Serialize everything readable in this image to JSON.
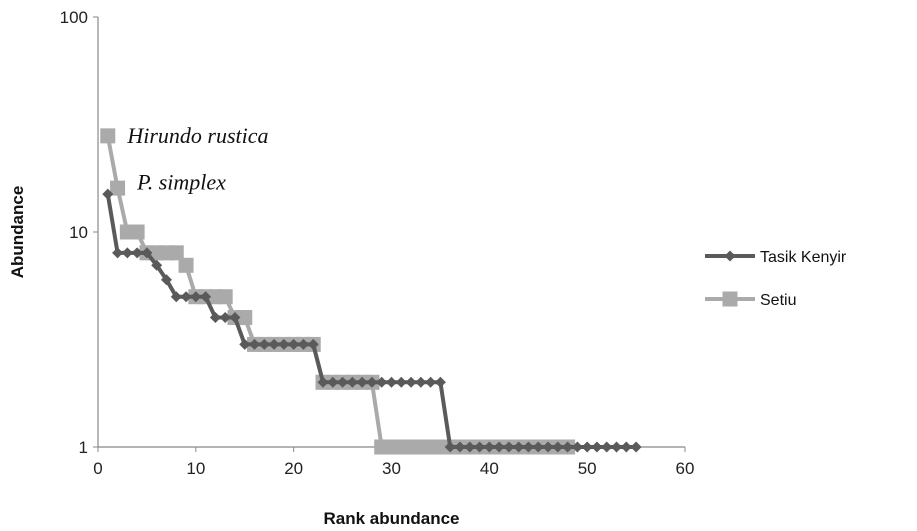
{
  "chart_data": {
    "type": "line",
    "title": "",
    "xlabel": "Rank abundance",
    "ylabel": "Abundance",
    "xlim": [
      0,
      60
    ],
    "ylim": [
      1,
      100
    ],
    "y_scale": "log",
    "x_ticks": [
      "0",
      "10",
      "20",
      "30",
      "40",
      "50",
      "60"
    ],
    "y_ticks": [
      "1",
      "10",
      "100"
    ],
    "grid": false,
    "legend_position": "right",
    "annotations": [
      {
        "text": "Hirundo rustica",
        "x": 3,
        "y": 28
      },
      {
        "text": "P. simplex",
        "x": 4,
        "y": 17
      }
    ],
    "series": [
      {
        "name": "Tasik Kenyir",
        "color": "#5a5a5a",
        "marker": "diamond",
        "x": [
          1,
          2,
          3,
          4,
          5,
          6,
          7,
          8,
          9,
          10,
          11,
          12,
          13,
          14,
          15,
          16,
          17,
          18,
          19,
          20,
          21,
          22,
          23,
          24,
          25,
          26,
          27,
          28,
          29,
          30,
          31,
          32,
          33,
          34,
          35,
          36,
          37,
          38,
          39,
          40,
          41,
          42,
          43,
          44,
          45,
          46,
          47,
          48,
          49,
          50,
          51,
          52,
          53,
          54,
          55
        ],
        "y": [
          15,
          8,
          8,
          8,
          8,
          7,
          6,
          5,
          5,
          5,
          5,
          4,
          4,
          4,
          3,
          3,
          3,
          3,
          3,
          3,
          3,
          3,
          2,
          2,
          2,
          2,
          2,
          2,
          2,
          2,
          2,
          2,
          2,
          2,
          2,
          1,
          1,
          1,
          1,
          1,
          1,
          1,
          1,
          1,
          1,
          1,
          1,
          1,
          1,
          1,
          1,
          1,
          1,
          1,
          1
        ]
      },
      {
        "name": "Setiu",
        "color": "#aaaaaa",
        "marker": "square",
        "x": [
          1,
          2,
          3,
          4,
          5,
          6,
          7,
          8,
          9,
          10,
          11,
          12,
          13,
          14,
          15,
          16,
          17,
          18,
          19,
          20,
          21,
          22,
          23,
          24,
          25,
          26,
          27,
          28,
          29,
          30,
          31,
          32,
          33,
          34,
          35,
          36,
          37,
          38,
          39,
          40,
          41,
          42,
          43,
          44,
          45,
          46,
          47,
          48
        ],
        "y": [
          28,
          16,
          10,
          10,
          8,
          8,
          8,
          8,
          7,
          5,
          5,
          5,
          5,
          4,
          4,
          3,
          3,
          3,
          3,
          3,
          3,
          3,
          2,
          2,
          2,
          2,
          2,
          2,
          1,
          1,
          1,
          1,
          1,
          1,
          1,
          1,
          1,
          1,
          1,
          1,
          1,
          1,
          1,
          1,
          1,
          1,
          1,
          1
        ]
      }
    ]
  }
}
